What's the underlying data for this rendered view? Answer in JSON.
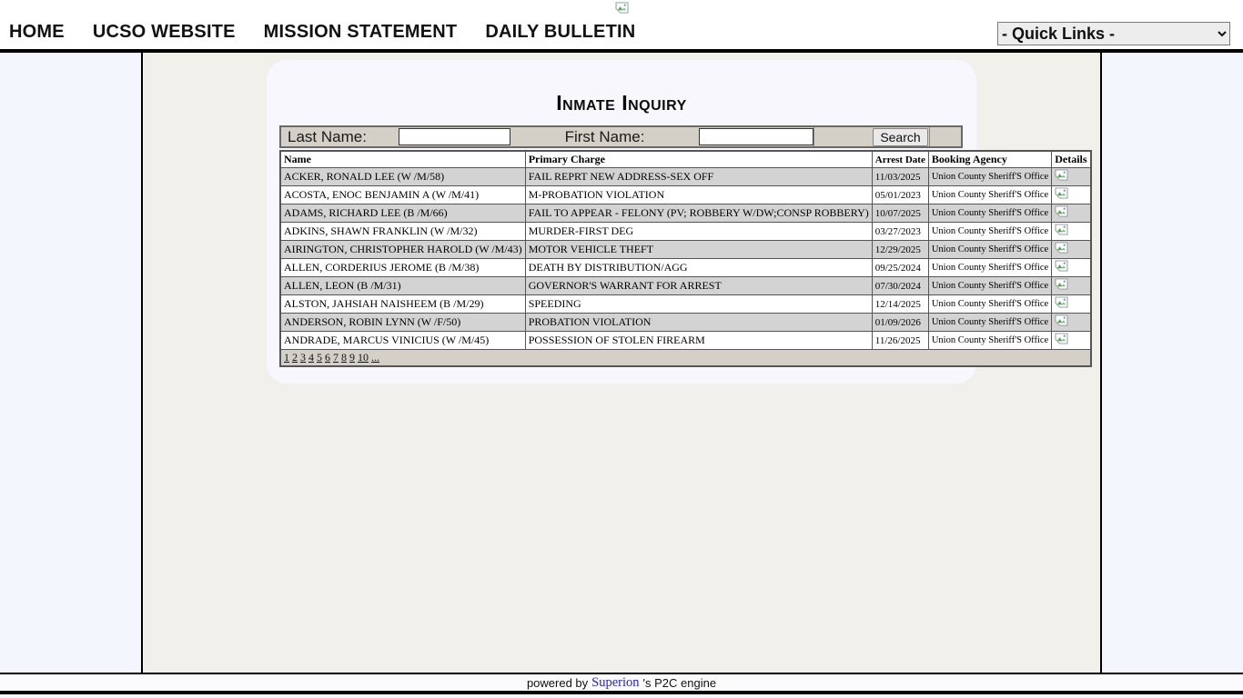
{
  "header": {
    "nav": [
      {
        "label": "HOME"
      },
      {
        "label": "UCSO WEBSITE"
      },
      {
        "label": "MISSION STATEMENT"
      },
      {
        "label": "DAILY BULLETIN"
      }
    ],
    "quick_links_selected": "- Quick Links -"
  },
  "main": {
    "title": "Inmate Inquiry",
    "search": {
      "last_name_label": "Last Name:",
      "last_name_value": "",
      "first_name_label": "First Name:",
      "first_name_value": "",
      "button_label": "Search"
    },
    "table": {
      "headers": [
        "Name",
        "Primary Charge",
        "Arrest Date",
        "Booking Agency",
        "Details"
      ],
      "rows": [
        {
          "name": "ACKER, RONALD LEE (W /M/58)",
          "charge": "FAIL REPRT NEW ADDRESS-SEX OFF",
          "arrest_date": "11/03/2025",
          "agency": "Union County Sheriff'S Office"
        },
        {
          "name": "ACOSTA, ENOC BENJAMIN A (W /M/41)",
          "charge": "M-PROBATION VIOLATION",
          "arrest_date": "05/01/2023",
          "agency": "Union County Sheriff'S Office"
        },
        {
          "name": "ADAMS, RICHARD LEE (B /M/66)",
          "charge": "FAIL TO APPEAR - FELONY (PV; ROBBERY W/DW;CONSP ROBBERY)",
          "arrest_date": "10/07/2025",
          "agency": "Union County Sheriff'S Office"
        },
        {
          "name": "ADKINS, SHAWN FRANKLIN (W /M/32)",
          "charge": "MURDER-FIRST DEG",
          "arrest_date": "03/27/2023",
          "agency": "Union County Sheriff'S Office"
        },
        {
          "name": "AIRINGTON, CHRISTOPHER HAROLD (W /M/43)",
          "charge": "MOTOR VEHICLE THEFT",
          "arrest_date": "12/29/2025",
          "agency": "Union County Sheriff'S Office"
        },
        {
          "name": "ALLEN, CORDERIUS JEROME (B /M/38)",
          "charge": "DEATH BY DISTRIBUTION/AGG",
          "arrest_date": "09/25/2024",
          "agency": "Union County Sheriff'S Office"
        },
        {
          "name": "ALLEN, LEON (B /M/31)",
          "charge": "GOVERNOR'S WARRANT FOR ARREST",
          "arrest_date": "07/30/2024",
          "agency": "Union County Sheriff'S Office"
        },
        {
          "name": "ALSTON, JAHSIAH NAISHEEM (B /M/29)",
          "charge": "SPEEDING",
          "arrest_date": "12/14/2025",
          "agency": "Union County Sheriff'S Office"
        },
        {
          "name": "ANDERSON, ROBIN LYNN (W /F/50)",
          "charge": "PROBATION VIOLATION",
          "arrest_date": "01/09/2026",
          "agency": "Union County Sheriff'S Office"
        },
        {
          "name": "ANDRADE, MARCUS VINICIUS (W /M/45)",
          "charge": "POSSESSION OF STOLEN FIREARM",
          "arrest_date": "11/26/2025",
          "agency": "Union County Sheriff'S Office"
        }
      ]
    },
    "pagination": {
      "pages": [
        "1",
        "2",
        "3",
        "4",
        "5",
        "6",
        "7",
        "8",
        "9",
        "10",
        "..."
      ]
    }
  },
  "footer": {
    "powered_by": "powered by",
    "brand": "Superion",
    "suffix": "'s P2C engine"
  },
  "colors": {
    "header_bg": "#ffffff",
    "divider_black": "#000000",
    "center_bg": "#f1f0ea",
    "outer_bg": "#f3f6fd",
    "panel_bg": "#f7f7fd",
    "searchbar_bg": "#d4d0c8",
    "row_gray": "#d3d3d3",
    "table_border": "#555555",
    "brand_link": "#2323cc"
  }
}
